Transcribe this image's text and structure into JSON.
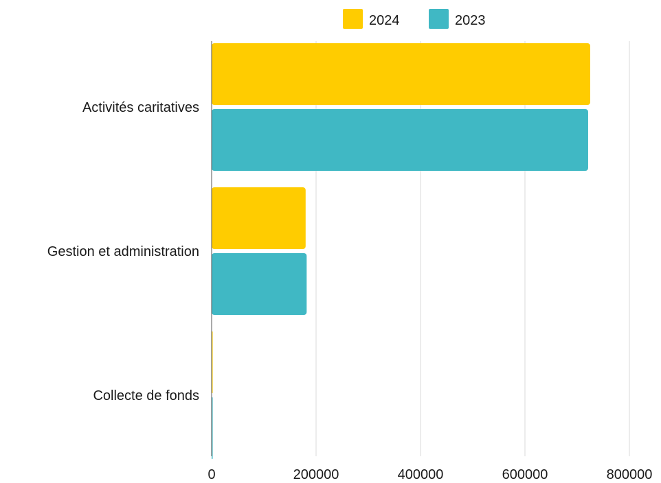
{
  "chart_data": {
    "type": "bar",
    "orientation": "horizontal",
    "title": "",
    "xlabel": "",
    "ylabel": "",
    "categories": [
      "Activités caritatives",
      "Gestion et administration",
      "Collecte de fonds"
    ],
    "series": [
      {
        "name": "2024",
        "color": "#FFCC00",
        "values": [
          725000,
          180000,
          1500
        ]
      },
      {
        "name": "2023",
        "color": "#40B8C4",
        "values": [
          721000,
          182000,
          1500
        ]
      }
    ],
    "xlim": [
      0,
      800000
    ],
    "ticks": [
      "0",
      "200000",
      "400000",
      "600000",
      "800000"
    ],
    "grid": true,
    "legend_position": "top"
  }
}
